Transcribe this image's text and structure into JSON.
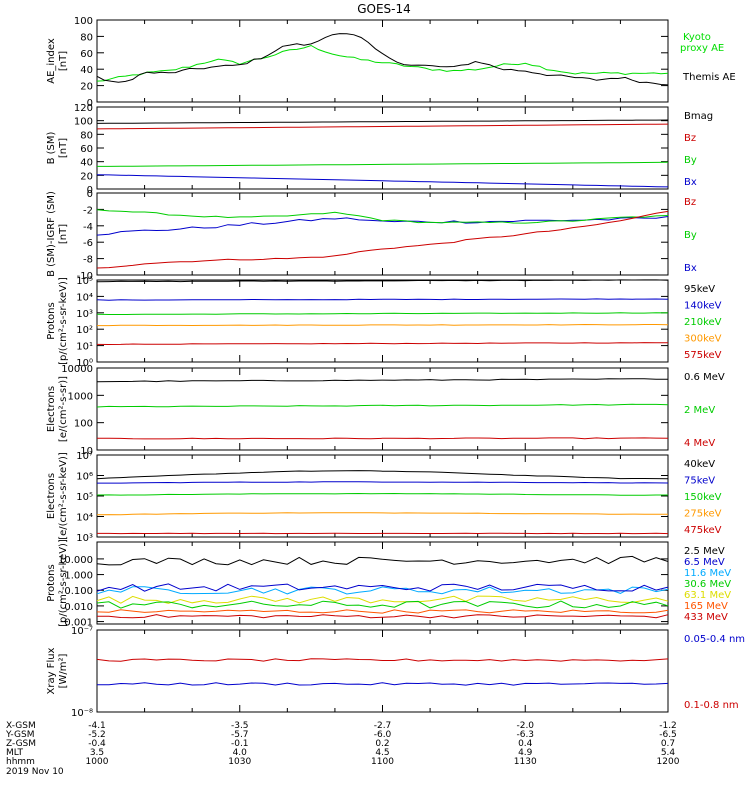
{
  "title": "GOES-14",
  "time_axis": {
    "ticks": [
      "1000",
      "1030",
      "1100",
      "1130",
      "1200"
    ],
    "date": "2019 Nov 10",
    "rows": [
      {
        "label": "X-GSM",
        "values": [
          "-4.1",
          "-3.5",
          "-2.7",
          "-2.0",
          "-1.2"
        ]
      },
      {
        "label": "Y-GSM",
        "values": [
          "-5.2",
          "-5.7",
          "-6.0",
          "-6.3",
          "-6.5"
        ]
      },
      {
        "label": "Z-GSM",
        "values": [
          "-0.4",
          "-0.1",
          "0.2",
          "0.4",
          "0.7"
        ]
      },
      {
        "label": "MLT",
        "values": [
          "3.5",
          "4.0",
          "4.5",
          "4.9",
          "5.4"
        ]
      },
      {
        "label": "hhmm",
        "values": [
          "1000",
          "1030",
          "1100",
          "1130",
          "1200"
        ]
      }
    ]
  },
  "chart_data": [
    {
      "type": "line",
      "ylabel": [
        "AE_index",
        "[nT]"
      ],
      "yscale": "linear",
      "ylim": [
        0,
        100
      ],
      "yticks": [
        "0",
        "20",
        "40",
        "60",
        "80",
        "100"
      ],
      "x": [
        0,
        5,
        10,
        15,
        20,
        25,
        30,
        35,
        40,
        45,
        50,
        55,
        60,
        65,
        70,
        75,
        80,
        85,
        90,
        95,
        100,
        105,
        110,
        115,
        120
      ],
      "series": [
        {
          "name": "Kyoto proxy AE",
          "color": "#00dd00",
          "values": [
            25,
            30,
            35,
            38,
            44,
            52,
            47,
            54,
            62,
            68,
            58,
            52,
            48,
            44,
            40,
            38,
            40,
            45,
            48,
            40,
            35,
            35,
            35,
            35,
            35
          ]
        },
        {
          "name": "Themis AE",
          "color": "#000000",
          "values": [
            30,
            22,
            36,
            35,
            40,
            43,
            45,
            55,
            70,
            70,
            85,
            80,
            58,
            45,
            44,
            42,
            50,
            40,
            38,
            33,
            30,
            27,
            30,
            24,
            22
          ]
        }
      ]
    },
    {
      "type": "line",
      "ylabel": [
        "B (SM)",
        "[nT]"
      ],
      "yscale": "linear",
      "ylim": [
        0,
        120
      ],
      "yticks": [
        "0",
        "20",
        "40",
        "60",
        "80",
        "100",
        "120"
      ],
      "x": [
        0,
        120
      ],
      "series": [
        {
          "name": "Bx",
          "color": "#0000cc",
          "values": [
            21,
            3
          ]
        },
        {
          "name": "By",
          "color": "#00cc00",
          "values": [
            33,
            39
          ]
        },
        {
          "name": "Bz",
          "color": "#cc0000",
          "values": [
            88,
            95
          ]
        },
        {
          "name": "Bmag",
          "color": "#000000",
          "values": [
            96,
            101
          ]
        }
      ]
    },
    {
      "type": "line",
      "ylabel": [
        "B (SM)-IGRF (SM)",
        "[nT]"
      ],
      "yscale": "linear",
      "ylim": [
        -10,
        0
      ],
      "yticks": [
        "-10",
        "-8",
        "-6",
        "-4",
        "-2",
        "0"
      ],
      "x": [
        0,
        10,
        20,
        30,
        40,
        50,
        55,
        60,
        70,
        80,
        90,
        100,
        110,
        120
      ],
      "series": [
        {
          "name": "Bx",
          "color": "#0000cc",
          "values": [
            -5.0,
            -4.6,
            -4.3,
            -3.9,
            -3.5,
            -3.1,
            -3.2,
            -3.5,
            -3.5,
            -3.5,
            -3.4,
            -3.3,
            -3.2,
            -3.0
          ]
        },
        {
          "name": "By",
          "color": "#00cc00",
          "values": [
            -2.0,
            -2.4,
            -2.8,
            -3.0,
            -2.8,
            -2.4,
            -2.8,
            -3.3,
            -3.6,
            -3.6,
            -3.6,
            -3.4,
            -3.0,
            -2.8
          ]
        },
        {
          "name": "Bz",
          "color": "#cc0000",
          "values": [
            -9.2,
            -8.6,
            -8.3,
            -8.1,
            -8.0,
            -7.7,
            -7.2,
            -6.8,
            -6.3,
            -5.6,
            -5.0,
            -4.3,
            -3.4,
            -2.2
          ]
        }
      ]
    },
    {
      "type": "line",
      "ylabel": [
        "Protons",
        "[p/(cm²-s-sr-keV)]"
      ],
      "yscale": "log",
      "ylim": [
        1,
        100000
      ],
      "yticks": [
        "10⁰",
        "10¹",
        "10²",
        "10³",
        "10⁴",
        "10⁵"
      ],
      "x": [
        0,
        120
      ],
      "series": [
        {
          "name": "575keV",
          "color": "#cc0000",
          "values": [
            12,
            15
          ]
        },
        {
          "name": "300keV",
          "color": "#ff9900",
          "values": [
            170,
            190
          ]
        },
        {
          "name": "210keV",
          "color": "#00cc00",
          "values": [
            800,
            1000
          ]
        },
        {
          "name": "140keV",
          "color": "#0000cc",
          "values": [
            6000,
            7000
          ]
        },
        {
          "name": "95keV",
          "color": "#000000",
          "values": [
            80000,
            100000
          ]
        }
      ]
    },
    {
      "type": "line",
      "ylabel": [
        "Electrons",
        "[e/(cm²-s-sr)]"
      ],
      "yscale": "log",
      "ylim": [
        10,
        10000
      ],
      "yticks": [
        "10",
        "100",
        "1000",
        "10000"
      ],
      "x": [
        0,
        120
      ],
      "series": [
        {
          "name": "4 MeV",
          "color": "#cc0000",
          "values": [
            26,
            27
          ]
        },
        {
          "name": "2 MeV",
          "color": "#00cc00",
          "values": [
            380,
            460
          ]
        },
        {
          "name": "0.6 MeV",
          "color": "#000000",
          "values": [
            3200,
            4000
          ]
        }
      ]
    },
    {
      "type": "line",
      "ylabel": [
        "Electrons",
        "[e/(cm²-s-sr-keV)]"
      ],
      "yscale": "log",
      "ylim": [
        1000,
        10000000
      ],
      "yticks": [
        "10³",
        "10⁴",
        "10⁵",
        "10⁶",
        "10⁷"
      ],
      "x": [
        0,
        20,
        40,
        55,
        70,
        90,
        110,
        120
      ],
      "series": [
        {
          "name": "475keV",
          "color": "#cc0000",
          "values": [
            1500,
            1500,
            1500,
            1500,
            1500,
            1500,
            1500,
            1500
          ]
        },
        {
          "name": "275keV",
          "color": "#ff9900",
          "values": [
            12000,
            14000,
            15000,
            15000,
            15000,
            14000,
            13000,
            13000
          ]
        },
        {
          "name": "150keV",
          "color": "#00cc00",
          "values": [
            110000,
            120000,
            130000,
            130000,
            130000,
            120000,
            110000,
            110000
          ]
        },
        {
          "name": "75keV",
          "color": "#0000cc",
          "values": [
            420000,
            460000,
            480000,
            490000,
            480000,
            460000,
            440000,
            430000
          ]
        },
        {
          "name": "40keV",
          "color": "#000000",
          "values": [
            700000,
            1100000,
            1600000,
            1700000,
            1500000,
            1000000,
            720000,
            700000
          ]
        }
      ]
    },
    {
      "type": "line",
      "ylabel": [
        "Protons",
        "[p/(cm²-s-sr-keV)]"
      ],
      "yscale": "log",
      "ylim": [
        0.0007,
        120
      ],
      "yticks": [
        "0.001",
        "0.010",
        "0.100",
        "1.000",
        "10.000"
      ],
      "x": [
        0,
        120
      ],
      "series": [
        {
          "name": "433 MeV",
          "color": "#cc0000",
          "values": [
            0.0022,
            0.0022
          ]
        },
        {
          "name": "165 MeV",
          "color": "#ff5500",
          "values": [
            0.0045,
            0.0045
          ]
        },
        {
          "name": "63.1 MeV",
          "color": "#dddd00",
          "values": [
            0.025,
            0.025
          ]
        },
        {
          "name": "30.6 MeV",
          "color": "#00cc00",
          "values": [
            0.012,
            0.012
          ]
        },
        {
          "name": "11.6 MeV",
          "color": "#00aaff",
          "values": [
            0.1,
            0.1
          ]
        },
        {
          "name": "6.5 MeV",
          "color": "#0000cc",
          "values": [
            0.15,
            0.15
          ]
        },
        {
          "name": "2.5 MeV",
          "color": "#000000",
          "values": [
            7,
            8.5
          ]
        }
      ]
    },
    {
      "type": "line",
      "ylabel": [
        "Xray Flux",
        "[W/m²]"
      ],
      "yscale": "log",
      "ylim": [
        1e-08,
        1e-07
      ],
      "yticks": [
        "10⁻⁸",
        "10⁻⁷"
      ],
      "x": [
        0,
        120
      ],
      "series": [
        {
          "name": "0.1-0.8 nm",
          "color": "#cc0000",
          "values": [
            4.3e-08,
            4.3e-08
          ]
        },
        {
          "name": "0.05-0.4 nm",
          "color": "#0000cc",
          "values": [
            2.2e-08,
            2.2e-08
          ]
        }
      ]
    }
  ]
}
